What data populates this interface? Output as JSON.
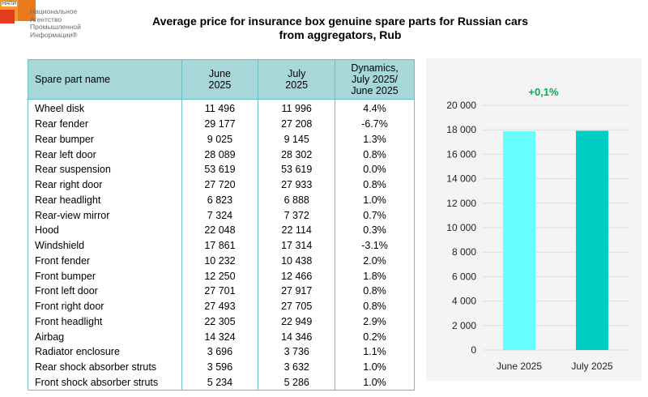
{
  "logo": {
    "badge": "НАПИ",
    "org_lines": [
      "Национальное",
      "Агентство",
      "Промышленной",
      "Информации®"
    ]
  },
  "title_lines": [
    "Average price for insurance box genuine spare parts for Russian cars",
    "from aggregators, Rub"
  ],
  "table": {
    "headers": {
      "name": "Spare part name",
      "june": [
        "June",
        "2025"
      ],
      "july": [
        "July",
        "2025"
      ],
      "dynamics": [
        "Dynamics,",
        "July 2025/",
        "June 2025"
      ]
    },
    "rows": [
      {
        "name": "Wheel disk",
        "june": "11 496",
        "july": "11 996",
        "dyn": "4.4%"
      },
      {
        "name": "Rear fender",
        "june": "29 177",
        "july": "27 208",
        "dyn": "-6.7%"
      },
      {
        "name": "Rear bumper",
        "june": "9 025",
        "july": "9 145",
        "dyn": "1.3%"
      },
      {
        "name": "Rear left door",
        "june": "28 089",
        "july": "28 302",
        "dyn": "0.8%"
      },
      {
        "name": "Rear suspension",
        "june": "53 619",
        "july": "53 619",
        "dyn": "0.0%"
      },
      {
        "name": "Rear right door",
        "june": "27 720",
        "july": "27 933",
        "dyn": "0.8%"
      },
      {
        "name": "Rear headlight",
        "june": "6 823",
        "july": "6 888",
        "dyn": "1.0%"
      },
      {
        "name": "Rear-view mirror",
        "june": "7 324",
        "july": "7 372",
        "dyn": "0.7%"
      },
      {
        "name": "Hood",
        "june": "22 048",
        "july": "22 114",
        "dyn": "0.3%"
      },
      {
        "name": "Windshield",
        "june": "17 861",
        "july": "17 314",
        "dyn": "-3.1%"
      },
      {
        "name": "Front fender",
        "june": "10 232",
        "july": "10 438",
        "dyn": "2.0%"
      },
      {
        "name": "Front bumper",
        "june": "12 250",
        "july": "12 466",
        "dyn": "1.8%"
      },
      {
        "name": "Front left door",
        "june": "27 701",
        "july": "27 917",
        "dyn": "0.8%"
      },
      {
        "name": "Front right door",
        "june": "27 493",
        "july": "27 705",
        "dyn": "0.8%"
      },
      {
        "name": "Front headlight",
        "june": "22 305",
        "july": "22 949",
        "dyn": "2.9%"
      },
      {
        "name": "Airbag",
        "june": "14 324",
        "july": "14 346",
        "dyn": "0.2%"
      },
      {
        "name": "Radiator enclosure",
        "june": "3 696",
        "july": "3 736",
        "dyn": "1.1%"
      },
      {
        "name": "Rear shock absorber struts",
        "june": "3 596",
        "july": "3 632",
        "dyn": "1.0%"
      },
      {
        "name": "Front shock absorber struts",
        "june": "5 234",
        "july": "5 286",
        "dyn": "1.0%"
      }
    ]
  },
  "colors": {
    "header_bg": "#a7d7d9",
    "grid_line": "#6cbfc3",
    "bar_june": "#66fffd",
    "bar_july": "#00cec5",
    "annotation": "#00b050",
    "panel_bg": "#f4f4f4"
  },
  "chart_data": {
    "type": "bar",
    "categories": [
      "June 2025",
      "July 2025"
    ],
    "values": [
      17880,
      17920
    ],
    "ylim": [
      0,
      20000
    ],
    "yticks": [
      0,
      2000,
      4000,
      6000,
      8000,
      10000,
      12000,
      14000,
      16000,
      18000,
      20000
    ],
    "ytick_labels": [
      "0",
      "2 000",
      "4 000",
      "6 000",
      "8 000",
      "10 000",
      "12 000",
      "14 000",
      "16 000",
      "18 000",
      "20 000"
    ],
    "annotation": "+0,1%",
    "grid": true
  }
}
